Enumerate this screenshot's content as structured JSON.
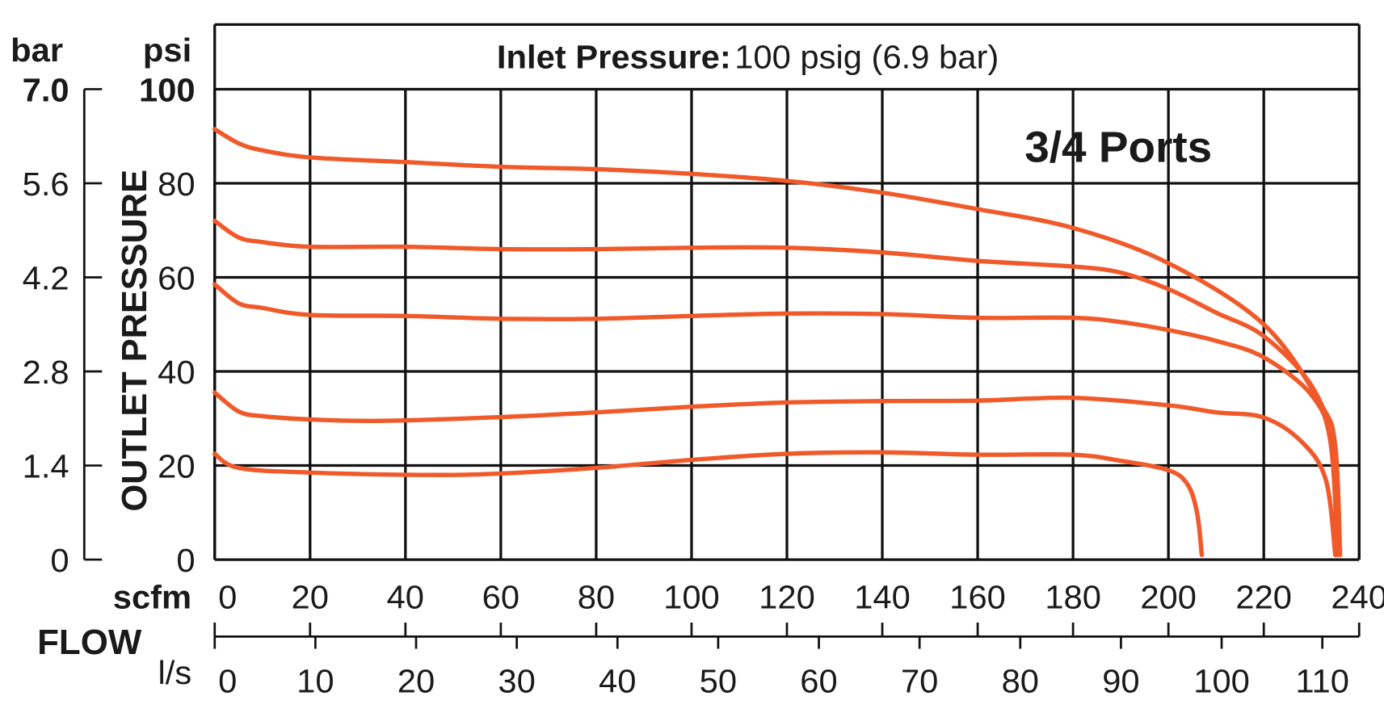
{
  "chart_data": {
    "type": "line",
    "title_bold": "Inlet Pressure:",
    "title_rest": "100 psig (6.9 bar)",
    "annotation": "3/4 Ports",
    "ylabel": "OUTLET PRESSURE",
    "xlabel": "FLOW",
    "y_unit_primary": "psi",
    "y_unit_secondary": "bar",
    "x_unit_primary": "scfm",
    "x_unit_secondary": "l/s",
    "ylim": [
      0,
      100
    ],
    "xlim": [
      0,
      240
    ],
    "grid": true,
    "psi_ticks": [
      "0",
      "20",
      "40",
      "60",
      "80",
      "100"
    ],
    "bar_ticks": [
      "0",
      "1.4",
      "2.8",
      "4.2",
      "5.6",
      "7.0"
    ],
    "scfm_ticks": [
      "0",
      "20",
      "40",
      "60",
      "80",
      "100",
      "120",
      "140",
      "160",
      "180",
      "200",
      "220",
      "240"
    ],
    "ls_ticks": [
      "0",
      "10",
      "20",
      "30",
      "40",
      "50",
      "60",
      "70",
      "80",
      "90",
      "100",
      "110"
    ],
    "line_color": "#f05a2a",
    "series": [
      {
        "points": [
          [
            0,
            91.5
          ],
          [
            5,
            88.5
          ],
          [
            10,
            87
          ],
          [
            20,
            85.5
          ],
          [
            40,
            84.5
          ],
          [
            60,
            83.5
          ],
          [
            80,
            83
          ],
          [
            100,
            82
          ],
          [
            120,
            80.5
          ],
          [
            140,
            78
          ],
          [
            160,
            74.5
          ],
          [
            180,
            70.5
          ],
          [
            200,
            63
          ],
          [
            220,
            50
          ],
          [
            232,
            33
          ],
          [
            235,
            24
          ],
          [
            236,
            1
          ]
        ]
      },
      {
        "points": [
          [
            0,
            72
          ],
          [
            5,
            68.5
          ],
          [
            10,
            67.5
          ],
          [
            20,
            66.5
          ],
          [
            40,
            66.5
          ],
          [
            60,
            66
          ],
          [
            80,
            66
          ],
          [
            100,
            66.3
          ],
          [
            120,
            66.3
          ],
          [
            140,
            65.3
          ],
          [
            160,
            63.5
          ],
          [
            180,
            62.3
          ],
          [
            190,
            61
          ],
          [
            200,
            57.5
          ],
          [
            210,
            52.5
          ],
          [
            220,
            47.5
          ],
          [
            230,
            37
          ],
          [
            234,
            25
          ],
          [
            235.5,
            1
          ]
        ]
      },
      {
        "points": [
          [
            0,
            58.5
          ],
          [
            5,
            54.5
          ],
          [
            10,
            53.5
          ],
          [
            20,
            52
          ],
          [
            40,
            51.8
          ],
          [
            60,
            51.2
          ],
          [
            80,
            51.2
          ],
          [
            100,
            51.8
          ],
          [
            120,
            52.3
          ],
          [
            140,
            52.2
          ],
          [
            160,
            51.4
          ],
          [
            180,
            51.4
          ],
          [
            190,
            50.5
          ],
          [
            200,
            48.8
          ],
          [
            210,
            46.5
          ],
          [
            220,
            43
          ],
          [
            230,
            35
          ],
          [
            234,
            25
          ],
          [
            235.5,
            1
          ]
        ]
      },
      {
        "points": [
          [
            0,
            35.5
          ],
          [
            5,
            31.5
          ],
          [
            10,
            30.5
          ],
          [
            20,
            29.8
          ],
          [
            35,
            29.5
          ],
          [
            60,
            30.3
          ],
          [
            80,
            31.3
          ],
          [
            100,
            32.5
          ],
          [
            120,
            33.4
          ],
          [
            140,
            33.7
          ],
          [
            160,
            33.8
          ],
          [
            180,
            34.4
          ],
          [
            200,
            32.8
          ],
          [
            210,
            31.3
          ],
          [
            220,
            30.2
          ],
          [
            228,
            25
          ],
          [
            233,
            17
          ],
          [
            235,
            1
          ]
        ]
      },
      {
        "points": [
          [
            0,
            22.5
          ],
          [
            5,
            19.5
          ],
          [
            20,
            18.5
          ],
          [
            45,
            18
          ],
          [
            60,
            18.3
          ],
          [
            80,
            19.5
          ],
          [
            100,
            21.2
          ],
          [
            120,
            22.5
          ],
          [
            140,
            22.8
          ],
          [
            160,
            22.3
          ],
          [
            180,
            22.3
          ],
          [
            190,
            21
          ],
          [
            200,
            19
          ],
          [
            204,
            16
          ],
          [
            206,
            10
          ],
          [
            207,
            1
          ]
        ]
      }
    ]
  }
}
